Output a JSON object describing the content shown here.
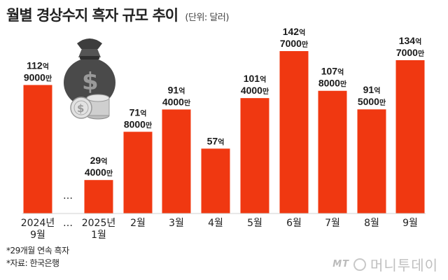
{
  "header": {
    "title": "월별 경상수지 흑자 규모 추이",
    "unit": "(단위: 달러)"
  },
  "chart_data": {
    "type": "bar",
    "title": "월별 경상수지 흑자 규모 추이",
    "unit": "(단위: 달러)",
    "bar_color": "#f03811",
    "categories": [
      {
        "line1": "2024년",
        "line2": "9월"
      },
      {
        "line1": "…",
        "line2": "",
        "gap": true
      },
      {
        "line1": "2025년",
        "line2": "1월"
      },
      {
        "line1": "2월",
        "line2": ""
      },
      {
        "line1": "3월",
        "line2": ""
      },
      {
        "line1": "4월",
        "line2": ""
      },
      {
        "line1": "5월",
        "line2": ""
      },
      {
        "line1": "6월",
        "line2": ""
      },
      {
        "line1": "7월",
        "line2": ""
      },
      {
        "line1": "8월",
        "line2": ""
      },
      {
        "line1": "9월",
        "line2": ""
      }
    ],
    "values": [
      11290,
      null,
      2940,
      7180,
      9140,
      5700,
      10140,
      14270,
      10780,
      9150,
      13470
    ],
    "value_labels": [
      {
        "a": "112",
        "b": "억",
        "c": "9000",
        "d": "만"
      },
      {
        "gap_mark": "…"
      },
      {
        "a": "29",
        "b": "억",
        "c": "4000",
        "d": "만"
      },
      {
        "a": "71",
        "b": "억",
        "c": "8000",
        "d": "만"
      },
      {
        "a": "91",
        "b": "억",
        "c": "4000",
        "d": "만"
      },
      {
        "a": "57",
        "b": "억",
        "c": "",
        "d": ""
      },
      {
        "a": "101",
        "b": "억",
        "c": "4000",
        "d": "만"
      },
      {
        "a": "142",
        "b": "억",
        "c": "7000",
        "d": "만"
      },
      {
        "a": "107",
        "b": "억",
        "c": "8000",
        "d": "만"
      },
      {
        "a": "91",
        "b": "억",
        "c": "5000",
        "d": "만"
      },
      {
        "a": "134",
        "b": "억",
        "c": "7000",
        "d": "만"
      }
    ],
    "ylim": [
      0,
      14270
    ]
  },
  "notes": [
    "*29개월 연속 흑자",
    "*자료: 한국은행"
  ],
  "brand": {
    "mark": "MT",
    "name": "머니투데이"
  },
  "icons": {
    "illustration": "money-bag-coins-icon"
  }
}
